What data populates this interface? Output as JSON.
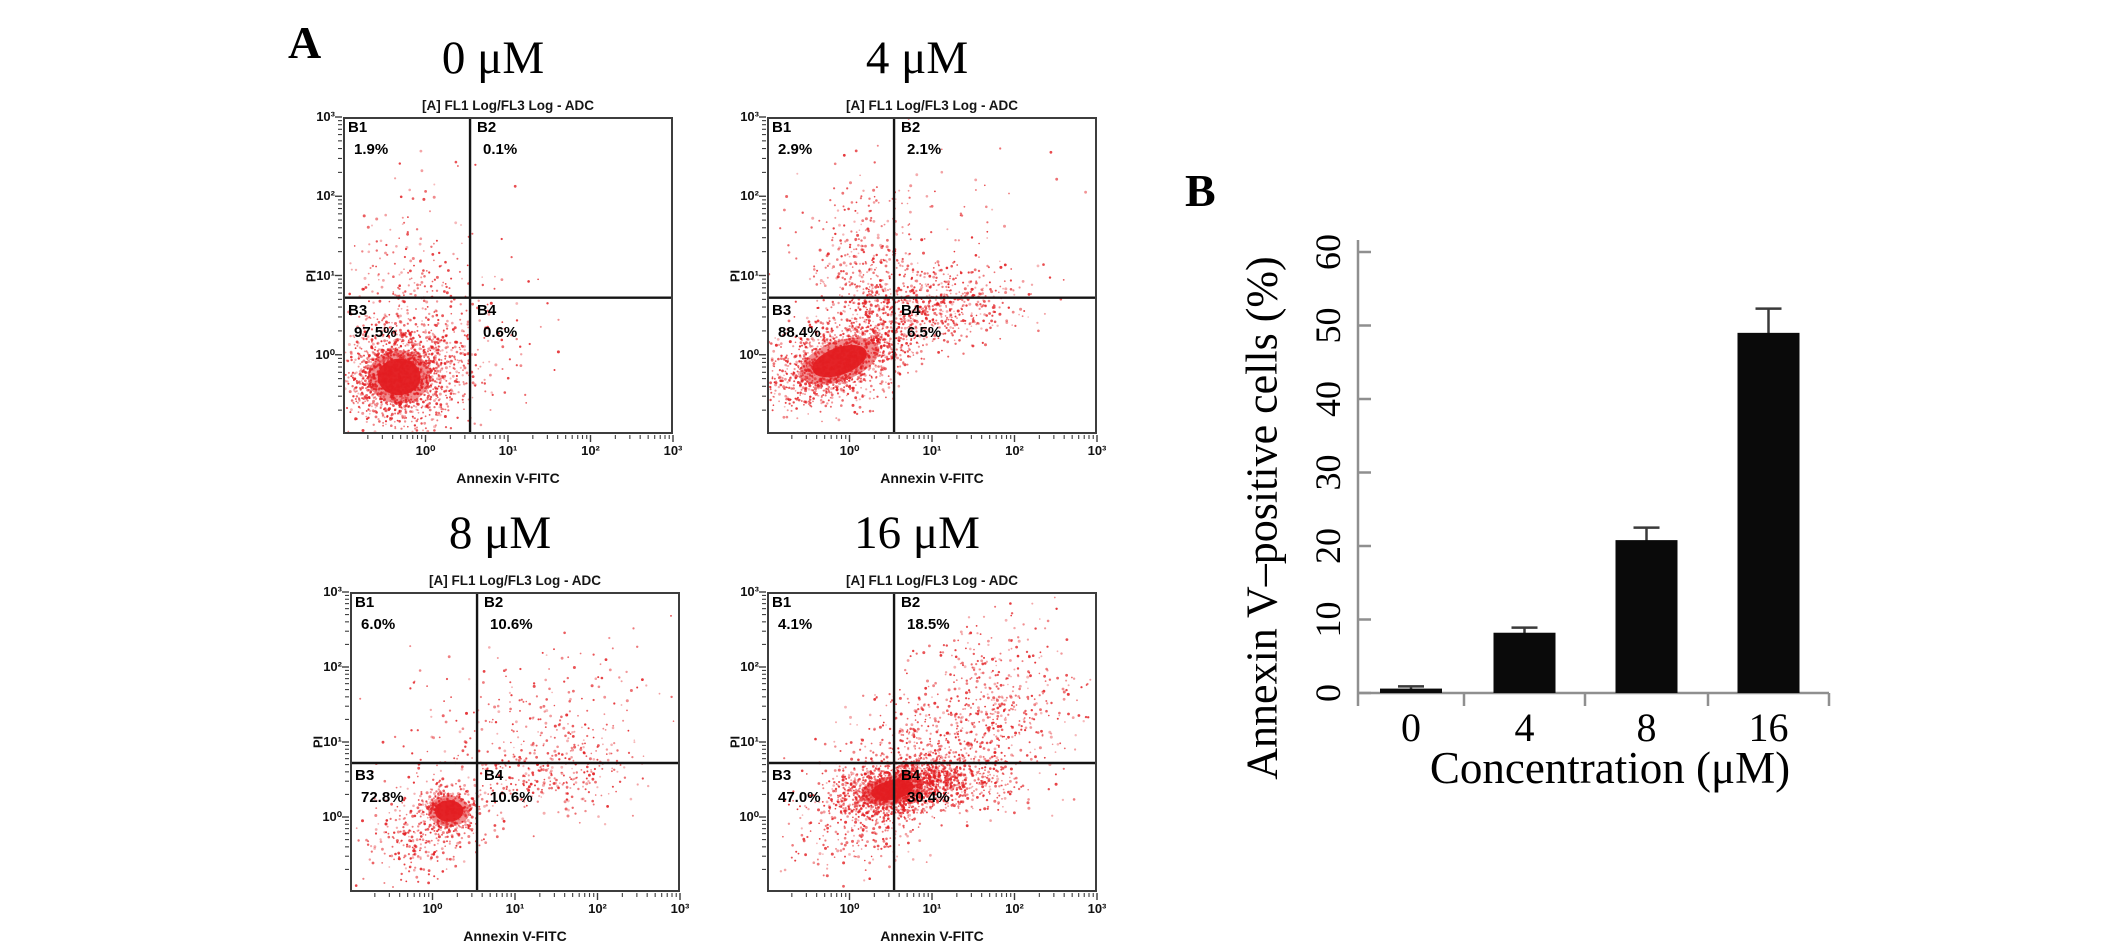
{
  "panels": {
    "a_label": "A",
    "b_label": "B"
  },
  "flow_axis": {
    "title": "[A] FL1 Log/FL3 Log - ADC",
    "xlabel": "Annexin V-FITC",
    "ylabel": "PI",
    "y_ticks": [
      "10³",
      "10²",
      "10¹",
      "10⁰"
    ],
    "x_ticks": [
      "10⁰",
      "10¹",
      "10²",
      "10³"
    ]
  },
  "flow_plots": [
    {
      "concentration": "0 μM",
      "quadrants": {
        "b1": {
          "name": "B1",
          "pct": "1.9%"
        },
        "b2": {
          "name": "B2",
          "pct": "0.1%"
        },
        "b3": {
          "name": "B3",
          "pct": "97.5%"
        },
        "b4": {
          "name": "B4",
          "pct": "0.6%"
        }
      },
      "clusters": [
        [
          0.17,
          0.82,
          0.09,
          0.08,
          1500,
          0,
          1
        ],
        [
          0.21,
          0.6,
          0.1,
          0.14,
          260,
          0,
          0
        ],
        [
          0.33,
          0.76,
          0.12,
          0.1,
          150,
          0,
          0
        ],
        [
          0.3,
          0.38,
          0.13,
          0.13,
          50,
          0,
          0
        ]
      ]
    },
    {
      "concentration": "4 μM",
      "quadrants": {
        "b1": {
          "name": "B1",
          "pct": "2.9%"
        },
        "b2": {
          "name": "B2",
          "pct": "2.1%"
        },
        "b3": {
          "name": "B3",
          "pct": "88.4%"
        },
        "b4": {
          "name": "B4",
          "pct": "6.5%"
        }
      },
      "clusters": [
        [
          0.22,
          0.77,
          0.12,
          0.06,
          1400,
          -0.35,
          1
        ],
        [
          0.42,
          0.6,
          0.12,
          0.06,
          420,
          0,
          0
        ],
        [
          0.3,
          0.46,
          0.08,
          0.13,
          300,
          0,
          0
        ],
        [
          0.6,
          0.58,
          0.1,
          0.06,
          230,
          0,
          0
        ],
        [
          0.52,
          0.3,
          0.2,
          0.12,
          70,
          0,
          0
        ]
      ]
    },
    {
      "concentration": "8 μM",
      "quadrants": {
        "b1": {
          "name": "B1",
          "pct": "6.0%"
        },
        "b2": {
          "name": "B2",
          "pct": "10.6%"
        },
        "b3": {
          "name": "B3",
          "pct": "72.8%"
        },
        "b4": {
          "name": "B4",
          "pct": "10.6%"
        }
      },
      "clusters": [
        [
          0.3,
          0.73,
          0.06,
          0.05,
          380,
          0,
          1
        ],
        [
          0.2,
          0.83,
          0.08,
          0.08,
          260,
          -0.5,
          0
        ],
        [
          0.6,
          0.6,
          0.13,
          0.07,
          300,
          0,
          0
        ],
        [
          0.46,
          0.44,
          0.16,
          0.12,
          170,
          0,
          0
        ],
        [
          0.75,
          0.36,
          0.12,
          0.12,
          70,
          0,
          0
        ]
      ]
    },
    {
      "concentration": "16 μM",
      "quadrants": {
        "b1": {
          "name": "B1",
          "pct": "4.1%"
        },
        "b2": {
          "name": "B2",
          "pct": "18.5%"
        },
        "b3": {
          "name": "B3",
          "pct": "47.0%"
        },
        "b4": {
          "name": "B4",
          "pct": "30.4%"
        }
      },
      "clusters": [
        [
          0.38,
          0.66,
          0.09,
          0.045,
          1300,
          -0.2,
          1
        ],
        [
          0.55,
          0.63,
          0.1,
          0.05,
          520,
          0,
          0
        ],
        [
          0.68,
          0.38,
          0.14,
          0.14,
          560,
          0.3,
          0
        ],
        [
          0.44,
          0.52,
          0.11,
          0.08,
          260,
          0,
          0
        ],
        [
          0.28,
          0.8,
          0.1,
          0.07,
          220,
          0,
          0
        ]
      ]
    }
  ],
  "chart_data": [
    {
      "type": "scatter",
      "panel": "A",
      "subtitle": "0 μM",
      "title": "[A] FL1 Log/FL3 Log - ADC",
      "xlabel": "Annexin V-FITC",
      "ylabel": "PI",
      "x_scale": "log",
      "y_scale": "log",
      "quadrant_percentages": {
        "B1": 1.9,
        "B2": 0.1,
        "B3": 97.5,
        "B4": 0.6
      }
    },
    {
      "type": "scatter",
      "panel": "A",
      "subtitle": "4 μM",
      "title": "[A] FL1 Log/FL3 Log - ADC",
      "xlabel": "Annexin V-FITC",
      "ylabel": "PI",
      "x_scale": "log",
      "y_scale": "log",
      "quadrant_percentages": {
        "B1": 2.9,
        "B2": 2.1,
        "B3": 88.4,
        "B4": 6.5
      }
    },
    {
      "type": "scatter",
      "panel": "A",
      "subtitle": "8 μM",
      "title": "[A] FL1 Log/FL3 Log - ADC",
      "xlabel": "Annexin V-FITC",
      "ylabel": "PI",
      "x_scale": "log",
      "y_scale": "log",
      "quadrant_percentages": {
        "B1": 6.0,
        "B2": 10.6,
        "B3": 72.8,
        "B4": 10.6
      }
    },
    {
      "type": "scatter",
      "panel": "A",
      "subtitle": "16 μM",
      "title": "[A] FL1 Log/FL3 Log - ADC",
      "xlabel": "Annexin V-FITC",
      "ylabel": "PI",
      "x_scale": "log",
      "y_scale": "log",
      "quadrant_percentages": {
        "B1": 4.1,
        "B2": 18.5,
        "B3": 47.0,
        "B4": 30.4
      }
    },
    {
      "type": "bar",
      "panel": "B",
      "categories": [
        "0",
        "4",
        "8",
        "16"
      ],
      "values": [
        0.6,
        8.2,
        20.8,
        49.0
      ],
      "errors": [
        0.3,
        0.7,
        1.7,
        3.3
      ],
      "xlabel": "Concentration (μM)",
      "ylabel": "Annexin V–positive cells  (%)",
      "ylim": [
        0,
        60
      ],
      "yticks": [
        0,
        10,
        20,
        30,
        40,
        50,
        60
      ],
      "grid": false,
      "legend": "none",
      "bar_color": "#0a0a0a"
    }
  ],
  "colors": {
    "dot_red": "#e31e22",
    "frame_gray": "#3d3d3d",
    "quadrant_line": "#141414",
    "bar_black": "#0a0a0a",
    "bar_axis_gray": "#8f8f8f",
    "text": "#000000",
    "background": "#ffffff"
  }
}
